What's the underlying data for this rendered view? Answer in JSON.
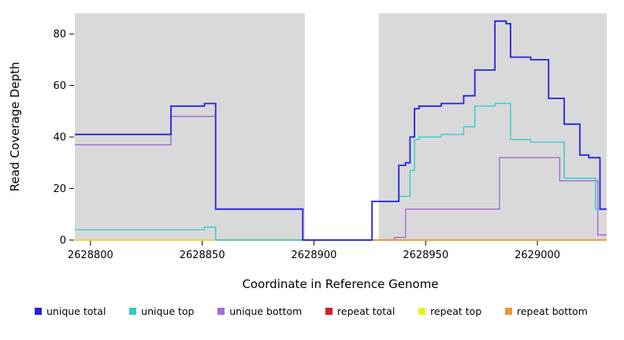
{
  "chart_data": {
    "type": "line",
    "subtype": "step",
    "title": "",
    "xlabel": "Coordinate in Reference Genome",
    "ylabel": "Read Coverage Depth",
    "xlim": [
      2628793,
      2629031
    ],
    "ylim": [
      0,
      88
    ],
    "x_ticks": [
      2628800,
      2628850,
      2628900,
      2628950,
      2629000
    ],
    "y_ticks": [
      0,
      20,
      40,
      60,
      80
    ],
    "grid": false,
    "legend_position": "bottom",
    "plot_bg": "#d9d9d9",
    "gap_region": {
      "start": 2628896,
      "end": 2628929,
      "color": "#ffffff"
    },
    "series": [
      {
        "name": "unique total",
        "color": "#2222dd",
        "z": 6,
        "points": [
          [
            2628793,
            41
          ],
          [
            2628836,
            52
          ],
          [
            2628851,
            53
          ],
          [
            2628856,
            12
          ],
          [
            2628895,
            0
          ],
          [
            2628926,
            15
          ],
          [
            2628938,
            29
          ],
          [
            2628941,
            30
          ],
          [
            2628943,
            40
          ],
          [
            2628945,
            51
          ],
          [
            2628947,
            52
          ],
          [
            2628957,
            53
          ],
          [
            2628967,
            56
          ],
          [
            2628972,
            66
          ],
          [
            2628981,
            85
          ],
          [
            2628986,
            84
          ],
          [
            2628988,
            71
          ],
          [
            2628997,
            70
          ],
          [
            2629005,
            55
          ],
          [
            2629012,
            45
          ],
          [
            2629019,
            33
          ],
          [
            2629023,
            32
          ],
          [
            2629028,
            12
          ]
        ]
      },
      {
        "name": "unique top",
        "color": "#33cccc",
        "z": 4,
        "points": [
          [
            2628793,
            4
          ],
          [
            2628851,
            5
          ],
          [
            2628856,
            0
          ],
          [
            2628926,
            15
          ],
          [
            2628938,
            17
          ],
          [
            2628943,
            27
          ],
          [
            2628945,
            39
          ],
          [
            2628947,
            40
          ],
          [
            2628957,
            41
          ],
          [
            2628967,
            44
          ],
          [
            2628972,
            52
          ],
          [
            2628981,
            53
          ],
          [
            2628988,
            39
          ],
          [
            2628997,
            38
          ],
          [
            2629012,
            24
          ],
          [
            2629026,
            12
          ]
        ]
      },
      {
        "name": "unique bottom",
        "color": "#a36ad9",
        "z": 3,
        "points": [
          [
            2628793,
            37
          ],
          [
            2628836,
            48
          ],
          [
            2628856,
            12
          ],
          [
            2628895,
            0
          ],
          [
            2628936,
            1
          ],
          [
            2628941,
            12
          ],
          [
            2628983,
            32
          ],
          [
            2629010,
            23
          ],
          [
            2629027,
            2
          ]
        ]
      },
      {
        "name": "repeat total",
        "color": "#cc2222",
        "z": 1,
        "points": [
          [
            2628793,
            0
          ]
        ]
      },
      {
        "name": "repeat top",
        "color": "#eeee22",
        "z": 2,
        "points": [
          [
            2628793,
            0
          ]
        ]
      },
      {
        "name": "repeat bottom",
        "color": "#ee9933",
        "z": 5,
        "points": [
          [
            2628895,
            0
          ]
        ]
      }
    ]
  }
}
